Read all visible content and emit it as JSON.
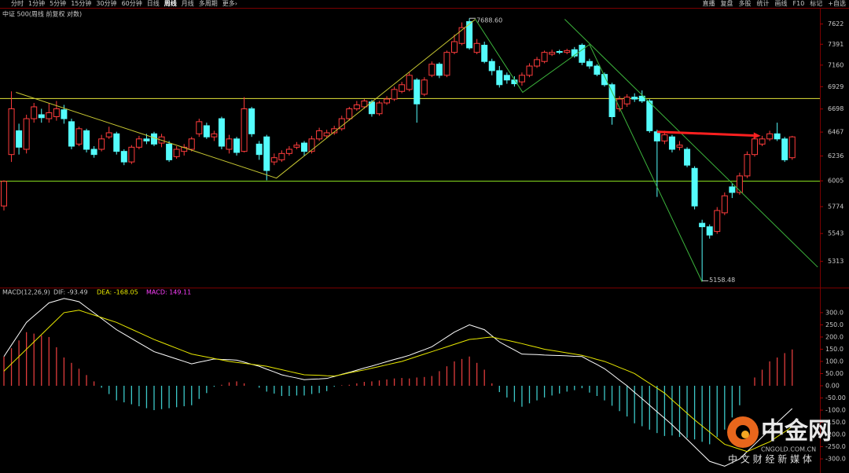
{
  "toolbar": {
    "left": [
      "分时",
      "1分钟",
      "5分钟",
      "15分钟",
      "30分钟",
      "60分钟",
      "日线",
      "周线",
      "月线",
      "多周期",
      "更多›"
    ],
    "selected_index": 7,
    "right": [
      "直播",
      "复盘",
      "多股",
      "统计",
      "画线",
      "F10",
      "标记",
      "+自选"
    ]
  },
  "watermark": {
    "name": "中金网",
    "site": "CNGOLD.COM.CN",
    "slogan": "中 文 财 经 新 媒 体"
  },
  "chart_data": [
    {
      "type": "candlestick",
      "title": "中证 500(周线 前复权 对数)",
      "log": true,
      "ylim": [
        5130,
        7700
      ],
      "yticks": [
        7622,
        7391,
        7160,
        6929,
        6698,
        6467,
        6236,
        6005,
        5774,
        5543,
        5313
      ],
      "up_color": "#ff3c3c",
      "down_color": "#54fcfc",
      "open": [
        5780,
        6250,
        6480,
        6300,
        6600,
        6640,
        6600,
        6620,
        6690,
        6570,
        6350,
        6480,
        6300,
        6300,
        6420,
        6450,
        6280,
        6180,
        6320,
        6400,
        6450,
        6360,
        6350,
        6230,
        6280,
        6300,
        6450,
        6530,
        6420,
        6600,
        6300,
        6400,
        6280,
        6700,
        6350,
        6420,
        6180,
        6200,
        6260,
        6320,
        6360,
        6280,
        6400,
        6430,
        6460,
        6500,
        6600,
        6700,
        6720,
        6770,
        6650,
        6760,
        6800,
        6880,
        6900,
        7000,
        6850,
        7050,
        7170,
        7050,
        7300,
        7400,
        7650,
        7300,
        7380,
        7200,
        7100,
        7050,
        7000,
        6980,
        7050,
        7150,
        7200,
        7280,
        7310,
        7300,
        7330,
        7380,
        7200,
        7150,
        7060,
        6950,
        6700,
        6750,
        6820,
        6830,
        6780,
        6470,
        6380,
        6420,
        6320,
        6300,
        6120,
        5630,
        5600,
        5560,
        5720,
        5950,
        5900,
        6050,
        6250,
        6350,
        6400,
        6450,
        6400,
        6220
      ],
      "high": [
        6010,
        6880,
        6550,
        6640,
        6760,
        6700,
        6760,
        6780,
        6740,
        6600,
        6520,
        6500,
        6330,
        6440,
        6520,
        6470,
        6300,
        6340,
        6430,
        6450,
        6470,
        6450,
        6380,
        6330,
        6350,
        6420,
        6600,
        6560,
        6480,
        6620,
        6440,
        6420,
        6820,
        6720,
        6380,
        6440,
        6260,
        6290,
        6330,
        6370,
        6380,
        6430,
        6510,
        6490,
        6530,
        6630,
        6720,
        6780,
        6800,
        6790,
        6780,
        6830,
        6930,
        6980,
        7080,
        7020,
        7030,
        7200,
        7190,
        7320,
        7500,
        7640,
        7688.6,
        7450,
        7420,
        7230,
        7150,
        7080,
        7040,
        7080,
        7180,
        7250,
        7320,
        7330,
        7330,
        7340,
        7360,
        7400,
        7230,
        7170,
        7080,
        6970,
        6830,
        6850,
        6860,
        6890,
        6800,
        6490,
        6480,
        6440,
        6380,
        6320,
        6140,
        5660,
        5620,
        5770,
        5900,
        5980,
        6080,
        6280,
        6430,
        6430,
        6480,
        6560,
        6420,
        6430
      ],
      "low": [
        5740,
        6180,
        6250,
        6260,
        6560,
        6560,
        6560,
        6580,
        6550,
        6300,
        6330,
        6270,
        6220,
        6280,
        6400,
        6250,
        6150,
        6160,
        6300,
        6350,
        6330,
        6320,
        6180,
        6210,
        6240,
        6280,
        6420,
        6400,
        6380,
        6300,
        6260,
        6240,
        6270,
        6420,
        6200,
        6010,
        6150,
        6180,
        6240,
        6300,
        6240,
        6260,
        6380,
        6410,
        6440,
        6480,
        6580,
        6680,
        6700,
        6620,
        6630,
        6740,
        6780,
        6860,
        6880,
        6560,
        6830,
        7030,
        7020,
        7030,
        7280,
        7380,
        7330,
        7280,
        7180,
        7050,
        6920,
        6960,
        6930,
        6940,
        7030,
        7130,
        7180,
        7260,
        7280,
        7280,
        7240,
        7160,
        7120,
        7040,
        6930,
        6540,
        6670,
        6720,
        6770,
        6760,
        6460,
        5860,
        6350,
        6270,
        6290,
        6130,
        5750,
        5158.48,
        5500,
        5540,
        5700,
        5850,
        5880,
        6030,
        6230,
        6330,
        6380,
        6380,
        6180,
        6200
      ],
      "close": [
        6000,
        6700,
        6320,
        6600,
        6720,
        6610,
        6660,
        6700,
        6600,
        6330,
        6500,
        6300,
        6250,
        6400,
        6460,
        6280,
        6180,
        6320,
        6400,
        6380,
        6350,
        6420,
        6200,
        6300,
        6320,
        6400,
        6570,
        6420,
        6450,
        6330,
        6400,
        6270,
        6700,
        6450,
        6250,
        6100,
        6220,
        6260,
        6300,
        6340,
        6280,
        6400,
        6480,
        6460,
        6500,
        6600,
        6700,
        6740,
        6780,
        6650,
        6760,
        6800,
        6900,
        6950,
        7050,
        6750,
        7000,
        7170,
        7050,
        7300,
        7420,
        7580,
        7350,
        7400,
        7200,
        7100,
        6950,
        7000,
        6960,
        7050,
        7150,
        7220,
        7300,
        7300,
        7300,
        7320,
        7260,
        7190,
        7150,
        7060,
        6950,
        6620,
        6800,
        6820,
        6800,
        6780,
        6480,
        6380,
        6440,
        6300,
        6340,
        6150,
        5780,
        5600,
        5530,
        5740,
        5870,
        5900,
        6050,
        6250,
        6400,
        6400,
        6450,
        6400,
        6200,
        6420
      ],
      "hlines": [
        {
          "value": 6805,
          "color": "#c8c832"
        },
        {
          "value": 6002,
          "color": "#7ccc1c"
        }
      ],
      "trendlines": [
        {
          "color": "#c8c832",
          "points": [
            [
              1.6,
              6870
            ],
            [
              36.3,
              6030
            ],
            [
              62.8,
              7677
            ]
          ]
        },
        {
          "color": "#3cb43c",
          "points": [
            [
              62.8,
              7677
            ],
            [
              69.1,
              6870
            ],
            [
              78,
              7388
            ]
          ]
        },
        {
          "color": "#3cb43c",
          "points": [
            [
              78,
              7388
            ],
            [
              93,
              5150
            ]
          ]
        },
        {
          "color": "#3cb43c",
          "points": [
            [
              74.7,
              7677
            ],
            [
              108.4,
              5267
            ]
          ]
        }
      ],
      "arrow": {
        "color": "#ff2020",
        "from": [
          87,
          6470
        ],
        "to": [
          100.8,
          6430
        ]
      },
      "annotations": [
        {
          "x": 62,
          "value": 7688.6,
          "label": "7688.60"
        },
        {
          "x": 93,
          "value": 5158.48,
          "label": "5158.48"
        }
      ]
    },
    {
      "type": "macd",
      "title": "MACD(12,26,9)",
      "legend": [
        "DIF: -93.49",
        "DEA: -168.05",
        "MACD: 149.11"
      ],
      "ylim": [
        -345,
        390
      ],
      "yticks": [
        {
          "value": 300,
          "label": "300.0"
        },
        {
          "value": 250,
          "label": "250.0"
        },
        {
          "value": 200,
          "label": "200.0"
        },
        {
          "value": 150,
          "label": "150.0"
        },
        {
          "value": 100,
          "label": "100.0"
        },
        {
          "value": 50,
          "label": "50.00"
        },
        {
          "value": 0,
          "label": "0.00"
        },
        {
          "value": -50,
          "label": "-50.00"
        },
        {
          "value": -100,
          "label": "-100.0"
        },
        {
          "value": -150,
          "label": "-150.0"
        },
        {
          "value": -200,
          "label": "-200.0"
        },
        {
          "value": -250,
          "label": "-250.0"
        },
        {
          "value": -300,
          "label": "-300.0"
        }
      ],
      "series": [
        {
          "name": "DIF",
          "color": "#ffffff",
          "values": [
            120,
            167,
            213,
            260,
            287,
            313,
            340,
            349,
            358,
            352,
            345,
            322,
            299,
            276,
            253,
            230,
            212,
            194,
            176,
            158,
            140,
            130,
            120,
            110,
            100,
            90,
            97,
            103,
            110,
            108,
            107,
            105,
            97,
            88,
            80,
            68,
            57,
            45,
            38,
            32,
            25,
            27,
            28,
            30,
            38,
            47,
            55,
            64,
            73,
            81,
            90,
            99,
            108,
            116,
            125,
            137,
            148,
            160,
            180,
            200,
            220,
            235,
            250,
            240,
            230,
            205,
            180,
            163,
            147,
            130,
            129,
            128,
            126,
            125,
            124,
            123,
            121,
            120,
            103,
            87,
            70,
            47,
            23,
            0,
            -27,
            -53,
            -80,
            -107,
            -133,
            -160,
            -190,
            -220,
            -250,
            -280,
            -310,
            -320,
            -330,
            -315,
            -300,
            -270,
            -240,
            -210,
            -180,
            -151,
            -122,
            -93.49
          ]
        },
        {
          "name": "DEA",
          "color": "#e8e800",
          "values": [
            60,
            90,
            120,
            150,
            180,
            210,
            240,
            270,
            300,
            305,
            310,
            300,
            290,
            280,
            270,
            260,
            246,
            232,
            218,
            204,
            190,
            178,
            166,
            154,
            142,
            130,
            124,
            118,
            112,
            106,
            100,
            96,
            92,
            88,
            84,
            80,
            73,
            66,
            59,
            52,
            45,
            44,
            43,
            41,
            40,
            46,
            53,
            59,
            65,
            72,
            79,
            86,
            93,
            100,
            110,
            120,
            130,
            140,
            150,
            160,
            170,
            180,
            190,
            193,
            197,
            200,
            193,
            187,
            180,
            173,
            165,
            158,
            150,
            145,
            140,
            135,
            130,
            125,
            117,
            108,
            100,
            88,
            75,
            63,
            50,
            30,
            10,
            -10,
            -30,
            -58,
            -85,
            -113,
            -140,
            -165,
            -190,
            -215,
            -240,
            -250,
            -260,
            -270,
            -257,
            -243,
            -230,
            -209,
            -189,
            -168.05
          ]
        },
        {
          "name": "MACD",
          "up_color": "#e03c3c",
          "down_color": "#3cc8c8",
          "values": [
            120,
            154,
            186,
            220,
            214,
            206,
            200,
            158,
            116,
            94,
            70,
            44,
            18,
            -8,
            -34,
            -60,
            -68,
            -76,
            -84,
            -92,
            -100,
            -96,
            -92,
            -88,
            -84,
            -80,
            -54,
            -30,
            -4,
            4,
            14,
            18,
            10,
            0,
            -8,
            -24,
            -32,
            -42,
            -42,
            -40,
            -40,
            -34,
            -30,
            -22,
            -4,
            2,
            4,
            10,
            16,
            18,
            22,
            26,
            30,
            32,
            30,
            34,
            36,
            40,
            60,
            80,
            100,
            110,
            120,
            94,
            66,
            10,
            -26,
            -48,
            -66,
            -86,
            -72,
            -60,
            -48,
            -40,
            -32,
            -24,
            -18,
            -10,
            -28,
            -42,
            -60,
            -82,
            -104,
            -126,
            -154,
            -166,
            -180,
            -194,
            -206,
            -204,
            -210,
            -214,
            -220,
            -230,
            -240,
            -210,
            -180,
            -130,
            -80,
            0,
            34,
            66,
            100,
            116,
            134,
            149.11
          ]
        }
      ]
    }
  ]
}
